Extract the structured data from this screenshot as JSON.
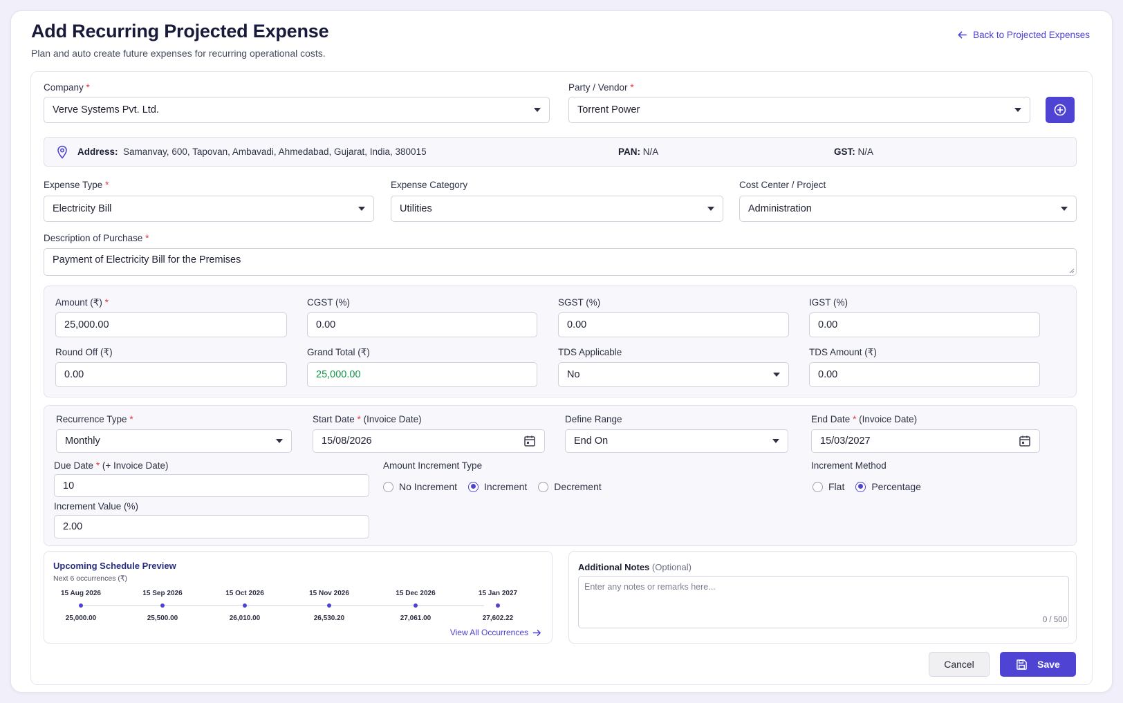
{
  "header": {
    "title": "Add Recurring Projected Expense",
    "subtitle": "Plan and auto create future expenses for recurring operational costs.",
    "back_link": "Back to Projected Expenses"
  },
  "company": {
    "label": "Company",
    "value": "Verve Systems Pvt. Ltd."
  },
  "party": {
    "label": "Party / Vendor",
    "value": "Torrent Power",
    "add_icon": "plus-circle-icon"
  },
  "address_bar": {
    "address_label": "Address:",
    "address": "Samanvay, 600, Tapovan, Ambavadi, Ahmedabad, Gujarat, India, 380015",
    "pan_label": "PAN:",
    "pan": "N/A",
    "gst_label": "GST:",
    "gst": "N/A"
  },
  "expense_type": {
    "label": "Expense Type",
    "value": "Electricity Bill"
  },
  "expense_category": {
    "label": "Expense Category",
    "value": "Utilities"
  },
  "cost_center": {
    "label": "Cost Center / Project",
    "value": "Administration"
  },
  "description": {
    "label": "Description of Purchase",
    "value": "Payment of Electricity Bill for the Premises"
  },
  "amounts": {
    "amount": {
      "label": "Amount (₹)",
      "value": "25,000.00"
    },
    "cgst": {
      "label": "CGST (%)",
      "value": "0.00"
    },
    "sgst": {
      "label": "SGST (%)",
      "value": "0.00"
    },
    "igst": {
      "label": "IGST (%)",
      "value": "0.00"
    },
    "round_off": {
      "label": "Round Off (₹)",
      "value": "0.00"
    },
    "grand_total": {
      "label": "Grand Total (₹)",
      "value": "25,000.00"
    },
    "tds_applicable": {
      "label": "TDS Applicable",
      "value": "No"
    },
    "tds_amount": {
      "label": "TDS Amount (₹)",
      "value": "0.00"
    }
  },
  "recurrence": {
    "type": {
      "label": "Recurrence Type",
      "value": "Monthly"
    },
    "start_date": {
      "label": "Start Date",
      "label_suffix": "(Invoice Date)",
      "value": "15/08/2026"
    },
    "define_range": {
      "label": "Define Range",
      "value": "End On"
    },
    "end_date": {
      "label": "End Date",
      "label_suffix": "(Invoice Date)",
      "value": "15/03/2027"
    },
    "due_date": {
      "label": "Due Date",
      "label_suffix": "(+ Invoice Date)",
      "value": "10"
    },
    "increment_type": {
      "label": "Amount Increment Type",
      "options": [
        "No Increment",
        "Increment",
        "Decrement"
      ],
      "selected": "Increment"
    },
    "increment_method": {
      "label": "Increment Method",
      "options": [
        "Flat",
        "Percentage"
      ],
      "selected": "Percentage"
    },
    "increment_value": {
      "label": "Increment Value (%)",
      "value": "2.00"
    }
  },
  "preview": {
    "title": "Upcoming Schedule Preview",
    "subtitle": "Next 6 occurrences (₹)",
    "items": [
      {
        "date": "15 Aug 2026",
        "amount": "25,000.00"
      },
      {
        "date": "15 Sep 2026",
        "amount": "25,500.00"
      },
      {
        "date": "15 Oct 2026",
        "amount": "26,010.00"
      },
      {
        "date": "15 Nov 2026",
        "amount": "26,530.20"
      },
      {
        "date": "15 Dec 2026",
        "amount": "27,061.00"
      },
      {
        "date": "15 Jan 2027",
        "amount": "27,602.22"
      }
    ],
    "view_all": "View All Occurrences"
  },
  "notes": {
    "label": "Additional Notes",
    "optional": "(Optional)",
    "placeholder": "Enter any notes or remarks here...",
    "counter": "0 / 500"
  },
  "actions": {
    "cancel": "Cancel",
    "save": "Save"
  },
  "colors": {
    "accent": "#4e43d3",
    "grand_total": "#17934a",
    "required": "#e0383e"
  }
}
